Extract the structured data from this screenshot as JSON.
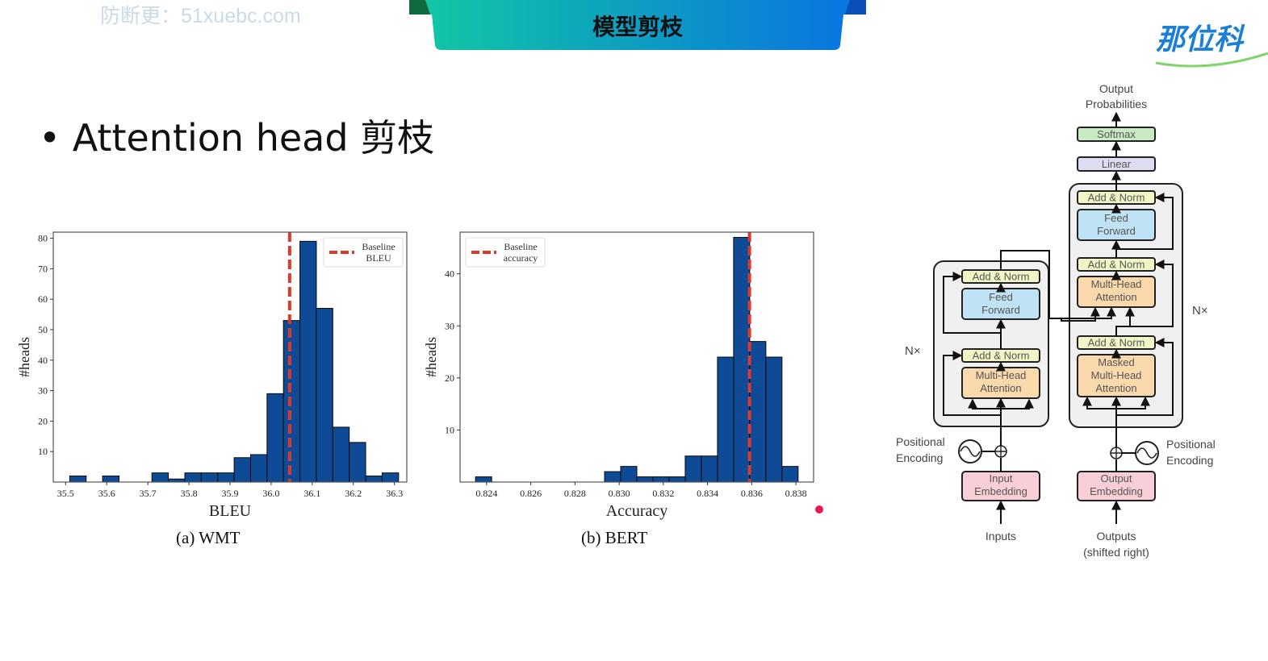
{
  "header": {
    "watermark": "防断更：51xuebc.com",
    "title": "模型剪枝",
    "logo": "那位科",
    "accent_colors": [
      "#0fc7a3",
      "#0a6fe0"
    ]
  },
  "bullet": {
    "text": "Attention head 剪枝"
  },
  "chart_data": [
    {
      "type": "bar",
      "caption": "(a)  WMT",
      "xlabel": "BLEU",
      "ylabel": "#heads",
      "xlim": [
        35.47,
        36.33
      ],
      "ylim": [
        0,
        82
      ],
      "xticks": [
        35.5,
        35.6,
        35.7,
        35.8,
        35.9,
        36.0,
        36.1,
        36.2,
        36.3
      ],
      "xtick_labels": [
        "35.5",
        "35.6",
        "35.7",
        "35.8",
        "35.9",
        "36.0",
        "36.1",
        "36.2",
        "36.3"
      ],
      "yticks": [
        10,
        20,
        30,
        40,
        50,
        60,
        70,
        80
      ],
      "ytick_labels": [
        "10",
        "20",
        "30",
        "40",
        "50",
        "60",
        "70",
        "80"
      ],
      "bin_width": 0.04,
      "bin_starts": [
        35.51,
        35.55,
        35.59,
        35.63,
        35.67,
        35.71,
        35.75,
        35.79,
        35.83,
        35.87,
        35.91,
        35.95,
        35.99,
        36.03,
        36.07,
        36.11,
        36.15,
        36.19,
        36.23,
        36.27
      ],
      "values": [
        2,
        0,
        2,
        0,
        0,
        3,
        1,
        3,
        3,
        3,
        8,
        9,
        29,
        53,
        79,
        57,
        18,
        13,
        2,
        3
      ],
      "baseline": {
        "value": 36.045,
        "label": "Baseline BLEU",
        "color": "#d93a2b"
      },
      "bar_color": "#0f4a96",
      "legend": {
        "position": "top-right",
        "label_lines": [
          "Baseline",
          "BLEU"
        ]
      }
    },
    {
      "type": "bar",
      "caption": "(b)  BERT",
      "xlabel": "Accuracy",
      "ylabel": "#heads",
      "xlim": [
        0.8228,
        0.8388
      ],
      "ylim": [
        0,
        48
      ],
      "xticks": [
        0.824,
        0.826,
        0.828,
        0.83,
        0.832,
        0.834,
        0.836,
        0.838
      ],
      "xtick_labels": [
        "0.824",
        "0.826",
        "0.828",
        "0.830",
        "0.832",
        "0.834",
        "0.836",
        "0.838"
      ],
      "yticks": [
        10,
        20,
        30,
        40
      ],
      "ytick_labels": [
        "10",
        "20",
        "30",
        "40"
      ],
      "bin_width": 0.00073,
      "bin_starts": [
        0.8235,
        0.82423,
        0.82496,
        0.82569,
        0.82642,
        0.82715,
        0.82788,
        0.82861,
        0.82934,
        0.83007,
        0.8308,
        0.83153,
        0.83226,
        0.83299,
        0.83372,
        0.83445,
        0.83518,
        0.83591,
        0.83664,
        0.83737
      ],
      "values": [
        1,
        0,
        0,
        0,
        0,
        0,
        0,
        0,
        2,
        3,
        1,
        1,
        1,
        5,
        5,
        24,
        47,
        27,
        24,
        3
      ],
      "baseline": {
        "value": 0.8359,
        "label": "Baseline accuracy",
        "color": "#d93a2b"
      },
      "bar_color": "#0f4a96",
      "legend": {
        "position": "top-left",
        "label_lines": [
          "Baseline",
          "accuracy"
        ]
      }
    }
  ],
  "transformer": {
    "output_probabilities": [
      "Output",
      "Probabilities"
    ],
    "softmax": "Softmax",
    "linear": "Linear",
    "add_norm": "Add & Norm",
    "feed_forward": [
      "Feed",
      "Forward"
    ],
    "multi_head_attention": [
      "Multi-Head",
      "Attention"
    ],
    "masked_attention": [
      "Masked",
      "Multi-Head",
      "Attention"
    ],
    "nx": "N×",
    "positional_encoding": [
      "Positional",
      "Encoding"
    ],
    "input_embedding": [
      "Input",
      "Embedding"
    ],
    "output_embedding": [
      "Output",
      "Embedding"
    ],
    "inputs": "Inputs",
    "outputs": [
      "Outputs",
      "(shifted right)"
    ]
  }
}
